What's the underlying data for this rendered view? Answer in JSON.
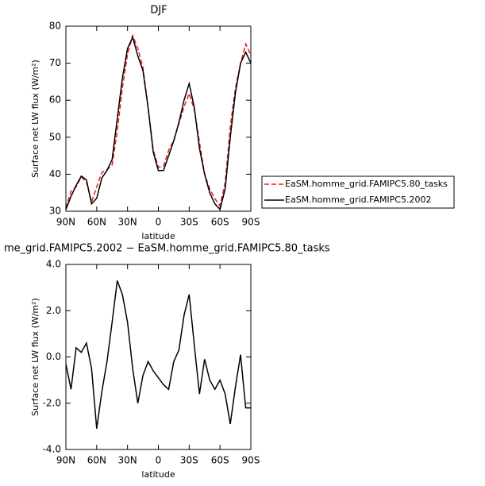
{
  "chart_data": [
    {
      "type": "line",
      "title": "DJF",
      "xlabel": "latitude",
      "ylabel": "Surface net LW flux (W/m²)",
      "x": [
        90,
        85,
        80,
        75,
        70,
        65,
        60,
        55,
        50,
        45,
        40,
        35,
        30,
        25,
        20,
        15,
        10,
        5,
        0,
        -5,
        -10,
        -15,
        -20,
        -25,
        -30,
        -35,
        -40,
        -45,
        -50,
        -55,
        -60,
        -65,
        -70,
        -75,
        -80,
        -85,
        -90
      ],
      "xlim": [
        90,
        -90
      ],
      "xticks": [
        {
          "value": 90,
          "label": "90N"
        },
        {
          "value": 60,
          "label": "60N"
        },
        {
          "value": 30,
          "label": "30N"
        },
        0,
        {
          "value": -30,
          "label": "30S"
        },
        {
          "value": -60,
          "label": "60S"
        },
        {
          "value": -90,
          "label": "90S"
        }
      ],
      "ylim": [
        30,
        80
      ],
      "yticks": [
        30,
        40,
        50,
        60,
        70,
        80
      ],
      "legend": "right",
      "series": [
        {
          "name": "EaSM.homme_grid.FAMIPC5.80_tasks",
          "color": "#e8191b",
          "linestyle": "dashed",
          "values": [
            30.8,
            35.4,
            36.6,
            39.3,
            37.9,
            32.5,
            36.6,
            40.5,
            41.2,
            42.5,
            51.7,
            63.3,
            72.5,
            77.5,
            74,
            68.8,
            58.2,
            46.6,
            41.9,
            42.2,
            46.4,
            49.2,
            53.7,
            58.2,
            61.8,
            57.5,
            48.6,
            40.1,
            36,
            33.4,
            31.5,
            37.6,
            52.9,
            63.3,
            69.9,
            75.2,
            72.2
          ]
        },
        {
          "name": "EaSM.homme_grid.FAMIPC5.2002",
          "color": "#000000",
          "linestyle": "solid",
          "values": [
            30.5,
            34,
            37,
            39.5,
            38.5,
            32,
            33.5,
            39,
            41,
            44,
            55,
            66,
            74,
            77,
            72,
            68,
            58,
            46,
            41,
            41,
            45,
            49,
            54,
            60,
            64.5,
            58,
            47,
            40,
            35,
            32,
            30.5,
            36,
            50,
            62,
            70,
            73,
            70
          ]
        }
      ]
    },
    {
      "type": "line",
      "title": "me_grid.FAMIPC5.2002 − EaSM.homme_grid.FAMIPC5.80_tasks",
      "xlabel": "latitude",
      "ylabel": "Surface net LW flux (W/m²)",
      "x": [
        90,
        85,
        80,
        75,
        70,
        65,
        60,
        55,
        50,
        45,
        40,
        35,
        30,
        25,
        20,
        15,
        10,
        5,
        0,
        -5,
        -10,
        -15,
        -20,
        -25,
        -30,
        -35,
        -40,
        -45,
        -50,
        -55,
        -60,
        -65,
        -70,
        -75,
        -80,
        -85,
        -90
      ],
      "xlim": [
        90,
        -90
      ],
      "xticks": [
        {
          "value": 90,
          "label": "90N"
        },
        {
          "value": 60,
          "label": "60N"
        },
        {
          "value": 30,
          "label": "30N"
        },
        0,
        {
          "value": -30,
          "label": "30S"
        },
        {
          "value": -60,
          "label": "60S"
        },
        {
          "value": -90,
          "label": "90S"
        }
      ],
      "ylim": [
        -4,
        4
      ],
      "yticks": [
        {
          "value": -4,
          "label": "-4.0"
        },
        {
          "value": -2,
          "label": "-2.0"
        },
        {
          "value": 0,
          "label": "0.0"
        },
        {
          "value": 2,
          "label": "2.0"
        },
        {
          "value": 4,
          "label": "4.0"
        }
      ],
      "series": [
        {
          "color": "#000000",
          "linestyle": "solid",
          "values": [
            -0.3,
            -1.4,
            0.4,
            0.2,
            0.6,
            -0.5,
            -3.1,
            -1.5,
            -0.2,
            1.5,
            3.3,
            2.7,
            1.5,
            -0.5,
            -2,
            -0.8,
            -0.2,
            -0.6,
            -0.9,
            -1.2,
            -1.4,
            -0.2,
            0.3,
            1.8,
            2.7,
            0.5,
            -1.6,
            -0.1,
            -1,
            -1.4,
            -1,
            -1.6,
            -2.9,
            -1.3,
            0.1,
            -2.2,
            -2.2
          ]
        }
      ]
    }
  ]
}
